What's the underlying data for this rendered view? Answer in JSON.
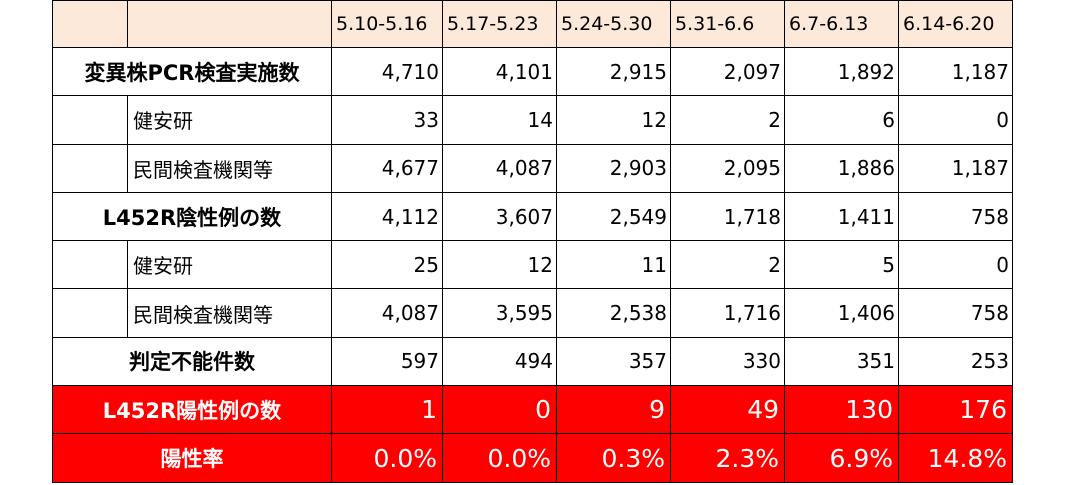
{
  "table": {
    "headers": [
      "",
      "",
      "5.10-5.16",
      "5.17-5.23",
      "5.24-5.30",
      "5.31-6.6",
      "6.7-6.13",
      "6.14-6.20"
    ],
    "rows": [
      {
        "label": "変異株PCR検査実施数",
        "values": [
          "4,710",
          "4,101",
          "2,915",
          "2,097",
          "1,892",
          "1,187"
        ]
      },
      {
        "label": "健安研",
        "values": [
          "33",
          "14",
          "12",
          "2",
          "6",
          "0"
        ]
      },
      {
        "label": "民間検査機関等",
        "values": [
          "4,677",
          "4,087",
          "2,903",
          "2,095",
          "1,886",
          "1,187"
        ]
      },
      {
        "label": "L452R陰性例の数",
        "values": [
          "4,112",
          "3,607",
          "2,549",
          "1,718",
          "1,411",
          "758"
        ]
      },
      {
        "label": "健安研",
        "values": [
          "25",
          "12",
          "11",
          "2",
          "5",
          "0"
        ]
      },
      {
        "label": "民間検査機関等",
        "values": [
          "4,087",
          "3,595",
          "2,538",
          "1,716",
          "1,406",
          "758"
        ]
      },
      {
        "label": "判定不能件数",
        "values": [
          "597",
          "494",
          "357",
          "330",
          "351",
          "253"
        ]
      },
      {
        "label": "L452R陽性例の数",
        "values": [
          "1",
          "0",
          "9",
          "49",
          "130",
          "176"
        ]
      },
      {
        "label": "陽性率",
        "values": [
          "0.0%",
          "0.0%",
          "0.3%",
          "2.3%",
          "6.9%",
          "14.8%"
        ]
      }
    ]
  },
  "colors": {
    "header_bg": "#fde9d9",
    "highlight_bg": "#ff0000",
    "highlight_text": "#ffffff"
  }
}
